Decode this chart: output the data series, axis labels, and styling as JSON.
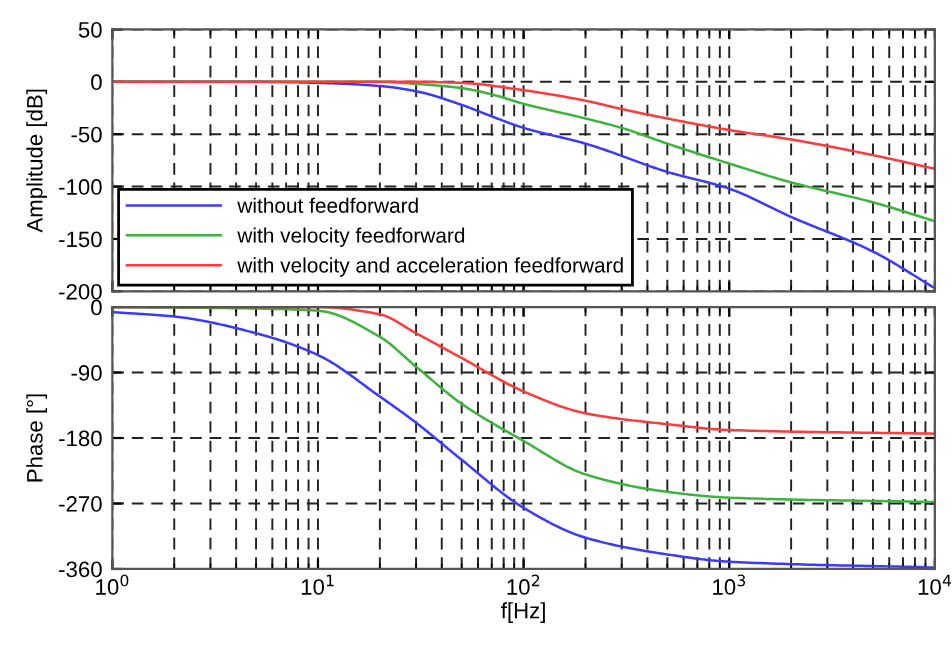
{
  "chart_data": [
    {
      "type": "line",
      "ylabel": "Amplitude [dB]",
      "log": "x",
      "xlim": [
        1,
        10000
      ],
      "ylim": [
        -200,
        50
      ],
      "xticks": [
        {
          "value": 1,
          "label": null
        },
        {
          "value": 10,
          "label": null
        },
        {
          "value": 100,
          "label": null
        },
        {
          "value": 1000,
          "label": null
        },
        {
          "value": 10000,
          "label": null
        }
      ],
      "yticks": [
        -200,
        -150,
        -100,
        -50,
        0,
        50
      ],
      "tick_labels": "y",
      "grid": true,
      "legend": "bottom left",
      "series": [
        {
          "name": "without feedforward",
          "color": "#3a3aff",
          "x": [
            1,
            5,
            10,
            20,
            30,
            50,
            70,
            100,
            200,
            500,
            1000,
            2000,
            5000,
            10000
          ],
          "values": [
            0,
            0,
            -1,
            -4,
            -9,
            -22,
            -33,
            -44,
            -59,
            -86,
            -102,
            -129,
            -162,
            -197
          ]
        },
        {
          "name": "with velocity feedforward",
          "color": "#3cb43c",
          "x": [
            1,
            10,
            20,
            30,
            50,
            70,
            100,
            200,
            300,
            500,
            1000,
            2000,
            5000,
            10000
          ],
          "values": [
            0,
            0,
            0,
            -2,
            -6,
            -12,
            -21,
            -35,
            -44,
            -59,
            -78,
            -96,
            -115,
            -133
          ]
        },
        {
          "name": "with velocity and acceleration feedforward",
          "color": "#ff3a3a",
          "x": [
            1,
            10,
            30,
            50,
            100,
            200,
            300,
            500,
            1000,
            2000,
            5000,
            10000
          ],
          "values": [
            0,
            0,
            0,
            -1,
            -8,
            -18,
            -26,
            -35,
            -46,
            -55,
            -70,
            -83
          ]
        }
      ]
    },
    {
      "type": "line",
      "ylabel": "Phase [°]",
      "xlabel": "f[Hz]",
      "log": "x",
      "xlim": [
        1,
        10000
      ],
      "ylim": [
        -360,
        0
      ],
      "xticks": [
        {
          "value": 1,
          "label": "10$^{0}$"
        },
        {
          "value": 10,
          "label": "10$^{1}$"
        },
        {
          "value": 100,
          "label": "10$^{2}$"
        },
        {
          "value": 1000,
          "label": "10$^{3}$"
        },
        {
          "value": 10000,
          "label": "10$^{4}$"
        }
      ],
      "yticks": [
        -360,
        -270,
        -180,
        -90,
        0
      ],
      "grid": true,
      "series": [
        {
          "color": "#3a3aff",
          "x": [
            1,
            2,
            5,
            10,
            20,
            30,
            50,
            100,
            200,
            500,
            1000,
            10000
          ],
          "values": [
            -7,
            -13,
            -36,
            -66,
            -123,
            -159,
            -210,
            -276,
            -317,
            -340,
            -350,
            -358
          ]
        },
        {
          "color": "#3cb43c",
          "x": [
            1,
            5,
            10,
            20,
            30,
            50,
            100,
            200,
            500,
            1000,
            10000
          ],
          "values": [
            0,
            -2,
            -5,
            -41,
            -82,
            -133,
            -184,
            -230,
            -254,
            -262,
            -268
          ]
        },
        {
          "color": "#ff3a3a",
          "x": [
            1,
            10,
            20,
            30,
            50,
            100,
            200,
            500,
            1000,
            10000
          ],
          "values": [
            0,
            0,
            -10,
            -36,
            -70,
            -116,
            -146,
            -161,
            -169,
            -174
          ]
        }
      ]
    }
  ]
}
